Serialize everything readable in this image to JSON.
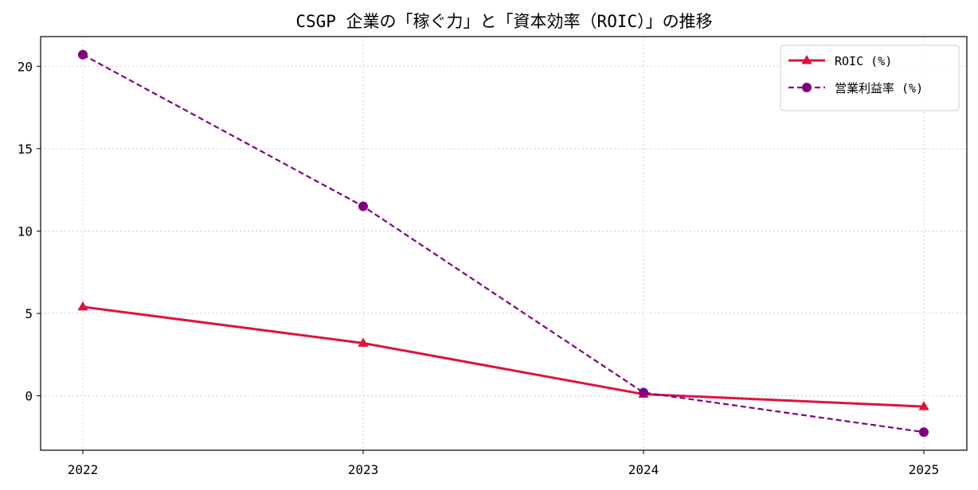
{
  "chart_data": {
    "type": "line",
    "title": "CSGP 企業の「稼ぐ力」と「資本効率（ROIC）」の推移",
    "xlabel": "",
    "ylabel": "",
    "categories": [
      "2022",
      "2023",
      "2024",
      "2025"
    ],
    "series": [
      {
        "name": "ROIC (%)",
        "values": [
          5.4,
          3.2,
          0.1,
          -0.65
        ],
        "color": "#dc143c",
        "line_style": "solid",
        "marker": "triangle"
      },
      {
        "name": "営業利益率 (%)",
        "values": [
          20.7,
          11.5,
          0.2,
          -2.2
        ],
        "color": "#800080",
        "line_style": "dashed",
        "marker": "circle"
      }
    ],
    "ylim": [
      -3.3,
      21.8
    ],
    "yticks": [
      0,
      5,
      10,
      15,
      20
    ],
    "grid": true,
    "legend_position": "top-right"
  }
}
